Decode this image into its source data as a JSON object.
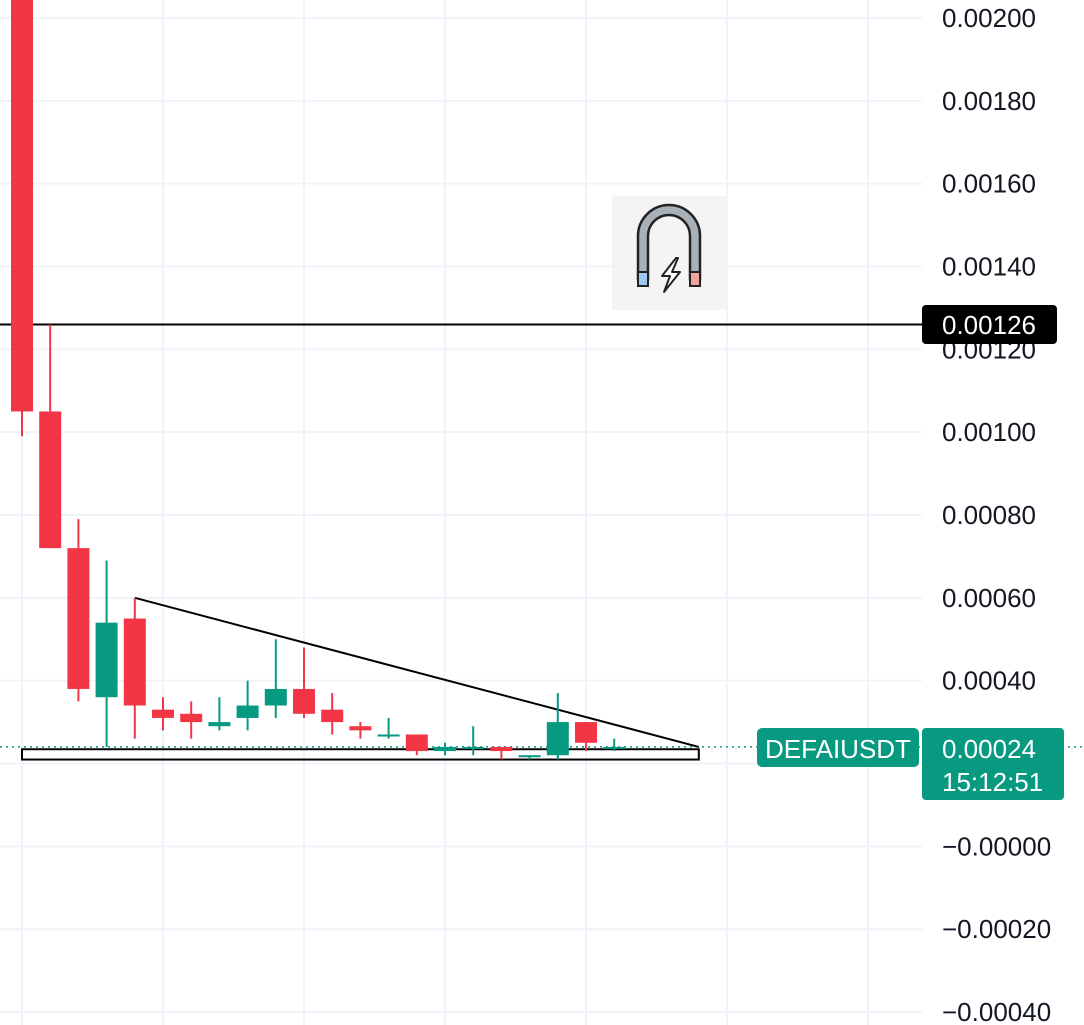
{
  "chart_data": {
    "type": "candlestick",
    "symbol_label": "DEFAIUSDT",
    "last_price_label": "0.00024",
    "countdown_label": "15:12:51",
    "price_line_label": "0.00126",
    "price_line_value": 0.00126,
    "ylim": [
      -0.0004,
      0.002
    ],
    "y_ticks": [
      {
        "value": 0.002,
        "label": "0.00200"
      },
      {
        "value": 0.0018,
        "label": "0.00180"
      },
      {
        "value": 0.0016,
        "label": "0.00160"
      },
      {
        "value": 0.0014,
        "label": "0.00140"
      },
      {
        "value": 0.0012,
        "label": "0.00120"
      },
      {
        "value": 0.001,
        "label": "0.00100"
      },
      {
        "value": 0.0008,
        "label": "0.00080"
      },
      {
        "value": 0.0006,
        "label": "0.00060"
      },
      {
        "value": 0.0004,
        "label": "0.00040"
      },
      {
        "value": 0.0002,
        "label": "0.00020"
      },
      {
        "value": 0.0,
        "label": "−0.00000"
      },
      {
        "value": -0.0002,
        "label": "−0.00020"
      },
      {
        "value": -0.0004,
        "label": "−0.00040"
      }
    ],
    "candles": [
      {
        "o": 0.00205,
        "h": 0.00205,
        "l": 0.00099,
        "c": 0.00105
      },
      {
        "o": 0.00105,
        "h": 0.00126,
        "l": 0.00072,
        "c": 0.00072
      },
      {
        "o": 0.00072,
        "h": 0.00079,
        "l": 0.00035,
        "c": 0.00038
      },
      {
        "o": 0.00036,
        "h": 0.00069,
        "l": 0.00024,
        "c": 0.00054
      },
      {
        "o": 0.00055,
        "h": 0.0006,
        "l": 0.00026,
        "c": 0.00034
      },
      {
        "o": 0.00033,
        "h": 0.00036,
        "l": 0.00028,
        "c": 0.00031
      },
      {
        "o": 0.00032,
        "h": 0.00035,
        "l": 0.00026,
        "c": 0.0003
      },
      {
        "o": 0.00029,
        "h": 0.00036,
        "l": 0.00028,
        "c": 0.0003
      },
      {
        "o": 0.00031,
        "h": 0.0004,
        "l": 0.00028,
        "c": 0.00034
      },
      {
        "o": 0.00034,
        "h": 0.0005,
        "l": 0.00031,
        "c": 0.00038
      },
      {
        "o": 0.00038,
        "h": 0.00048,
        "l": 0.00031,
        "c": 0.00032
      },
      {
        "o": 0.00033,
        "h": 0.00037,
        "l": 0.00027,
        "c": 0.0003
      },
      {
        "o": 0.00029,
        "h": 0.0003,
        "l": 0.00026,
        "c": 0.00028
      },
      {
        "o": 0.00027,
        "h": 0.00031,
        "l": 0.00026,
        "c": 0.00027
      },
      {
        "o": 0.00027,
        "h": 0.00027,
        "l": 0.00022,
        "c": 0.00023
      },
      {
        "o": 0.00023,
        "h": 0.00025,
        "l": 0.00022,
        "c": 0.00024
      },
      {
        "o": 0.00024,
        "h": 0.00029,
        "l": 0.00022,
        "c": 0.00024
      },
      {
        "o": 0.00024,
        "h": 0.00024,
        "l": 0.00021,
        "c": 0.00023
      },
      {
        "o": 0.00022,
        "h": 0.00022,
        "l": 0.00021,
        "c": 0.00022
      },
      {
        "o": 0.00022,
        "h": 0.00037,
        "l": 0.00021,
        "c": 0.0003
      },
      {
        "o": 0.0003,
        "h": 0.0003,
        "l": 0.00023,
        "c": 0.00025
      },
      {
        "o": 0.00024,
        "h": 0.00026,
        "l": 0.00023,
        "c": 0.00024
      }
    ],
    "trendline": {
      "from": {
        "candle": 4,
        "value": 0.0006
      },
      "to": {
        "candle": 24,
        "value": 0.00024
      }
    },
    "support_band": {
      "from_candle": 0,
      "to_candle": 24,
      "top": 0.000232,
      "bottom": 0.000212
    },
    "colors": {
      "up": "#089981",
      "down": "#f23645",
      "grid": "#f0f3fa",
      "text": "#131722",
      "line": "#000000"
    },
    "icon": "magnet-icon",
    "grid": true
  }
}
